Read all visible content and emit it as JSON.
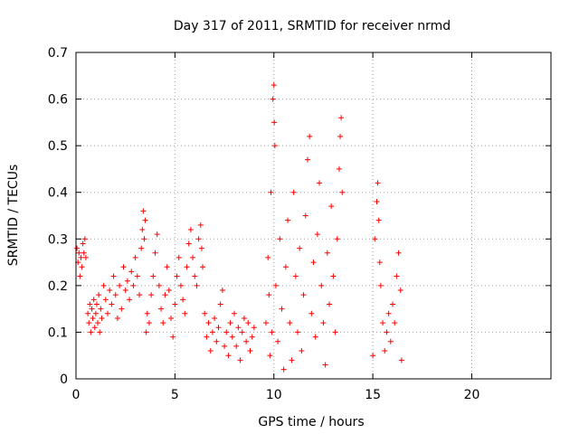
{
  "chart_data": {
    "type": "scatter",
    "title": "Day 317 of 2011, SRMTID for receiver nrmd",
    "xlabel": "GPS time / hours",
    "ylabel": "SRMTID / TECUs",
    "xlim": [
      0,
      24
    ],
    "ylim": [
      0,
      0.7
    ],
    "xticks": [
      0,
      5,
      10,
      15,
      20
    ],
    "yticks": [
      0,
      0.1,
      0.2,
      0.3,
      0.4,
      0.5,
      0.6,
      0.7
    ],
    "grid": true,
    "marker": "+",
    "color": "#ff0000",
    "series": [
      {
        "points": [
          [
            0.05,
            0.28
          ],
          [
            0.1,
            0.25
          ],
          [
            0.15,
            0.27
          ],
          [
            0.2,
            0.22
          ],
          [
            0.25,
            0.26
          ],
          [
            0.3,
            0.24
          ],
          [
            0.35,
            0.29
          ],
          [
            0.4,
            0.27
          ],
          [
            0.45,
            0.3
          ],
          [
            0.5,
            0.26
          ],
          [
            0.6,
            0.14
          ],
          [
            0.65,
            0.12
          ],
          [
            0.7,
            0.16
          ],
          [
            0.75,
            0.1
          ],
          [
            0.8,
            0.15
          ],
          [
            0.85,
            0.13
          ],
          [
            0.9,
            0.17
          ],
          [
            0.95,
            0.11
          ],
          [
            1.0,
            0.14
          ],
          [
            1.05,
            0.16
          ],
          [
            1.1,
            0.12
          ],
          [
            1.15,
            0.18
          ],
          [
            1.2,
            0.1
          ],
          [
            1.25,
            0.15
          ],
          [
            1.3,
            0.13
          ],
          [
            1.4,
            0.2
          ],
          [
            1.5,
            0.17
          ],
          [
            1.6,
            0.14
          ],
          [
            1.7,
            0.19
          ],
          [
            1.8,
            0.16
          ],
          [
            1.9,
            0.22
          ],
          [
            2.0,
            0.18
          ],
          [
            2.1,
            0.13
          ],
          [
            2.2,
            0.2
          ],
          [
            2.3,
            0.15
          ],
          [
            2.4,
            0.24
          ],
          [
            2.5,
            0.19
          ],
          [
            2.6,
            0.21
          ],
          [
            2.7,
            0.17
          ],
          [
            2.8,
            0.23
          ],
          [
            2.9,
            0.2
          ],
          [
            3.0,
            0.26
          ],
          [
            3.1,
            0.22
          ],
          [
            3.2,
            0.18
          ],
          [
            3.3,
            0.28
          ],
          [
            3.35,
            0.32
          ],
          [
            3.4,
            0.36
          ],
          [
            3.45,
            0.3
          ],
          [
            3.5,
            0.34
          ],
          [
            3.55,
            0.1
          ],
          [
            3.6,
            0.14
          ],
          [
            3.7,
            0.12
          ],
          [
            3.8,
            0.18
          ],
          [
            3.9,
            0.22
          ],
          [
            4.0,
            0.27
          ],
          [
            4.1,
            0.31
          ],
          [
            4.2,
            0.2
          ],
          [
            4.3,
            0.15
          ],
          [
            4.4,
            0.12
          ],
          [
            4.5,
            0.18
          ],
          [
            4.6,
            0.24
          ],
          [
            4.7,
            0.19
          ],
          [
            4.8,
            0.13
          ],
          [
            4.9,
            0.09
          ],
          [
            5.0,
            0.16
          ],
          [
            5.1,
            0.22
          ],
          [
            5.2,
            0.26
          ],
          [
            5.3,
            0.2
          ],
          [
            5.4,
            0.17
          ],
          [
            5.5,
            0.14
          ],
          [
            5.6,
            0.24
          ],
          [
            5.7,
            0.29
          ],
          [
            5.8,
            0.32
          ],
          [
            5.9,
            0.26
          ],
          [
            6.0,
            0.22
          ],
          [
            6.1,
            0.2
          ],
          [
            6.2,
            0.3
          ],
          [
            6.3,
            0.33
          ],
          [
            6.35,
            0.28
          ],
          [
            6.4,
            0.24
          ],
          [
            6.5,
            0.14
          ],
          [
            6.6,
            0.09
          ],
          [
            6.7,
            0.12
          ],
          [
            6.8,
            0.06
          ],
          [
            6.9,
            0.1
          ],
          [
            7.0,
            0.13
          ],
          [
            7.1,
            0.08
          ],
          [
            7.2,
            0.11
          ],
          [
            7.3,
            0.16
          ],
          [
            7.4,
            0.19
          ],
          [
            7.5,
            0.07
          ],
          [
            7.6,
            0.1
          ],
          [
            7.7,
            0.05
          ],
          [
            7.8,
            0.12
          ],
          [
            7.9,
            0.09
          ],
          [
            8.0,
            0.14
          ],
          [
            8.1,
            0.07
          ],
          [
            8.2,
            0.11
          ],
          [
            8.3,
            0.04
          ],
          [
            8.4,
            0.1
          ],
          [
            8.5,
            0.13
          ],
          [
            8.6,
            0.08
          ],
          [
            8.7,
            0.12
          ],
          [
            8.8,
            0.06
          ],
          [
            8.9,
            0.09
          ],
          [
            9.0,
            0.11
          ],
          [
            9.6,
            0.12
          ],
          [
            9.7,
            0.26
          ],
          [
            9.75,
            0.18
          ],
          [
            9.8,
            0.05
          ],
          [
            9.85,
            0.4
          ],
          [
            9.9,
            0.1
          ],
          [
            9.95,
            0.6
          ],
          [
            10.0,
            0.63
          ],
          [
            10.02,
            0.55
          ],
          [
            10.05,
            0.5
          ],
          [
            10.1,
            0.2
          ],
          [
            10.2,
            0.08
          ],
          [
            10.3,
            0.3
          ],
          [
            10.4,
            0.15
          ],
          [
            10.5,
            0.02
          ],
          [
            10.6,
            0.24
          ],
          [
            10.7,
            0.34
          ],
          [
            10.8,
            0.12
          ],
          [
            10.9,
            0.04
          ],
          [
            11.0,
            0.4
          ],
          [
            11.1,
            0.22
          ],
          [
            11.2,
            0.1
          ],
          [
            11.3,
            0.28
          ],
          [
            11.4,
            0.06
          ],
          [
            11.5,
            0.18
          ],
          [
            11.6,
            0.35
          ],
          [
            11.7,
            0.47
          ],
          [
            11.8,
            0.52
          ],
          [
            11.9,
            0.14
          ],
          [
            12.0,
            0.25
          ],
          [
            12.1,
            0.09
          ],
          [
            12.2,
            0.31
          ],
          [
            12.3,
            0.42
          ],
          [
            12.4,
            0.2
          ],
          [
            12.5,
            0.12
          ],
          [
            12.6,
            0.03
          ],
          [
            12.7,
            0.27
          ],
          [
            12.8,
            0.16
          ],
          [
            12.9,
            0.37
          ],
          [
            13.0,
            0.22
          ],
          [
            13.1,
            0.1
          ],
          [
            13.2,
            0.3
          ],
          [
            13.3,
            0.45
          ],
          [
            13.35,
            0.52
          ],
          [
            13.4,
            0.56
          ],
          [
            13.45,
            0.4
          ],
          [
            15.0,
            0.05
          ],
          [
            15.1,
            0.3
          ],
          [
            15.2,
            0.38
          ],
          [
            15.25,
            0.42
          ],
          [
            15.3,
            0.34
          ],
          [
            15.35,
            0.25
          ],
          [
            15.4,
            0.2
          ],
          [
            15.5,
            0.12
          ],
          [
            15.6,
            0.06
          ],
          [
            15.7,
            0.1
          ],
          [
            15.8,
            0.14
          ],
          [
            15.9,
            0.08
          ],
          [
            16.0,
            0.16
          ],
          [
            16.1,
            0.12
          ],
          [
            16.2,
            0.22
          ],
          [
            16.3,
            0.27
          ],
          [
            16.4,
            0.19
          ],
          [
            16.45,
            0.04
          ]
        ]
      }
    ]
  }
}
